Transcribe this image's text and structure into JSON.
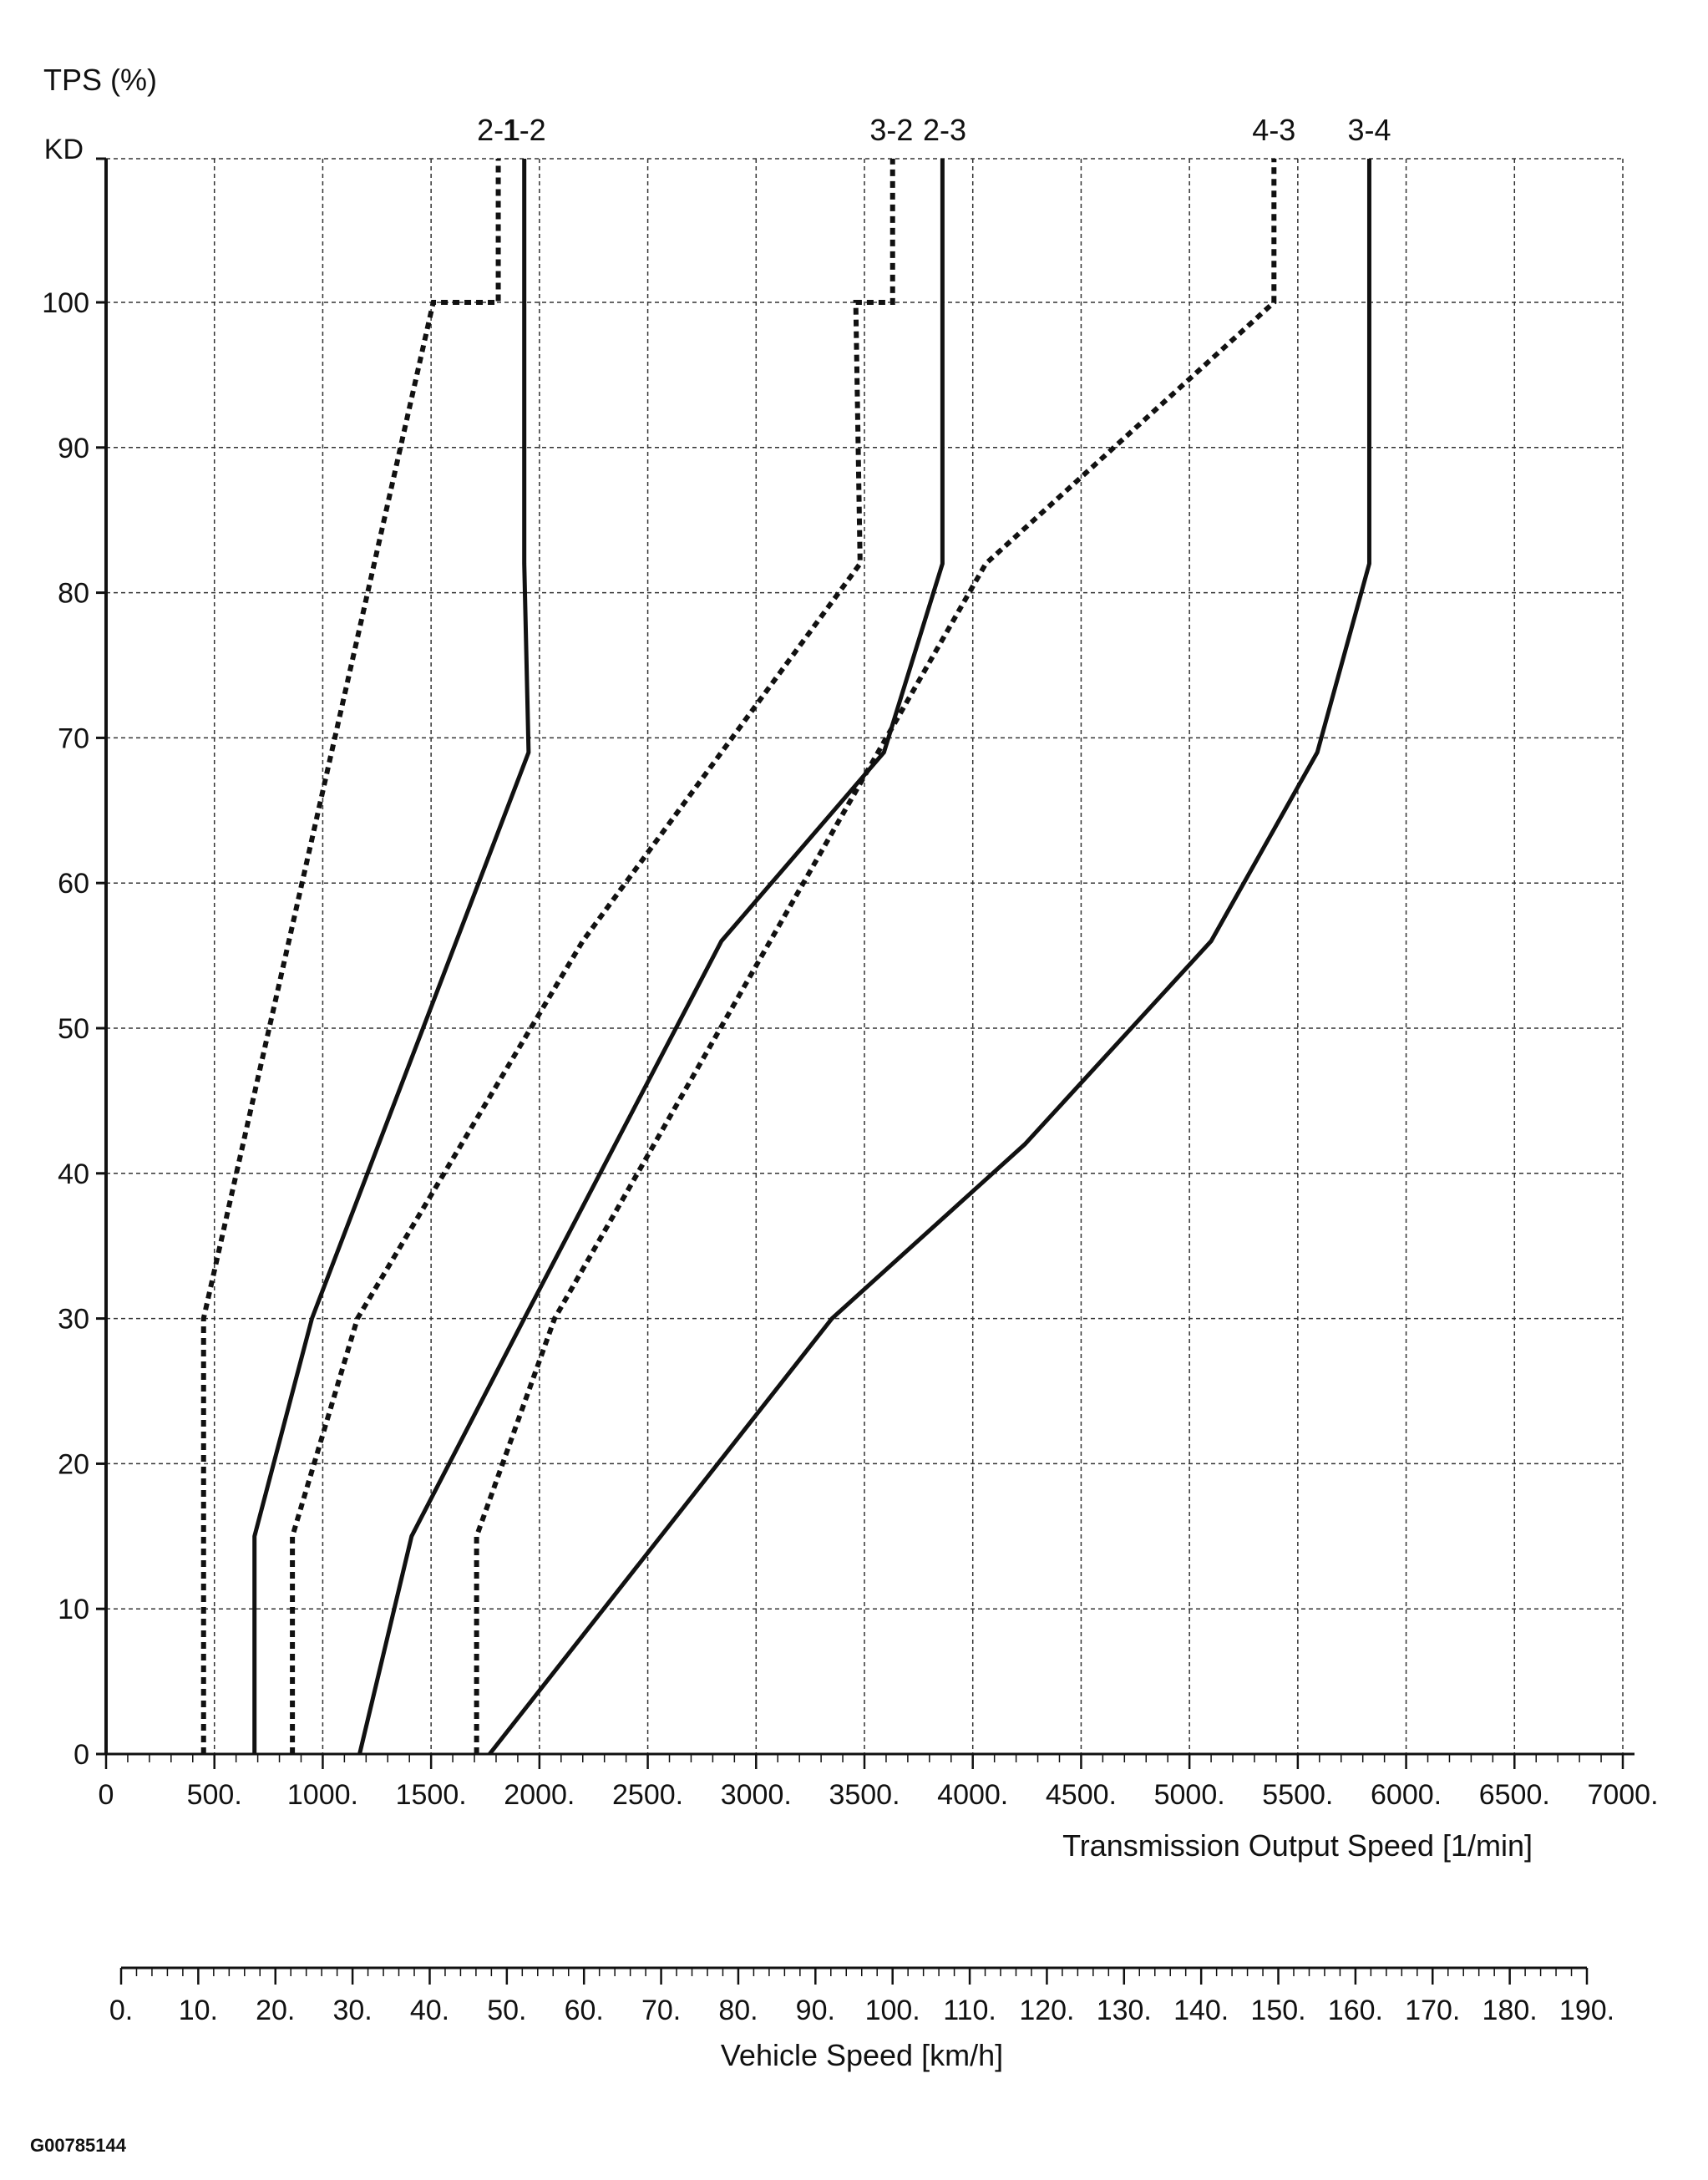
{
  "chart_data": {
    "type": "line",
    "ylabel": "TPS (%)",
    "xlabel": "Transmission Output Speed [1/min]",
    "x2label": "Vehicle Speed [km/h]",
    "xlim": [
      0,
      7000
    ],
    "ylim": [
      0,
      105
    ],
    "kd_label": "KD",
    "y_ticks": [
      0,
      10,
      20,
      30,
      40,
      50,
      60,
      70,
      80,
      90,
      100
    ],
    "y_tick_labels": [
      "0",
      "10",
      "20",
      "30",
      "40",
      "50",
      "60",
      "70",
      "80",
      "90",
      "100"
    ],
    "x_ticks": [
      0,
      500,
      1000,
      1500,
      2000,
      2500,
      3000,
      3500,
      4000,
      4500,
      5000,
      5500,
      6000,
      6500,
      7000
    ],
    "x_tick_labels": [
      "0",
      "500.",
      "1000.",
      "1500.",
      "2000.",
      "2500.",
      "3000.",
      "3500.",
      "4000.",
      "4500.",
      "5000.",
      "5500.",
      "6000.",
      "6500.",
      "7000."
    ],
    "x2_ticks": [
      0,
      10,
      20,
      30,
      40,
      50,
      60,
      70,
      80,
      90,
      100,
      110,
      120,
      130,
      140,
      150,
      160,
      170,
      180,
      190
    ],
    "x2_tick_labels": [
      "0.",
      "10.",
      "20.",
      "30.",
      "40.",
      "50.",
      "60.",
      "70.",
      "80.",
      "90.",
      "100.",
      "110.",
      "120.",
      "130.",
      "140.",
      "150.",
      "160.",
      "170.",
      "180.",
      "190."
    ],
    "grid": true,
    "series": [
      {
        "name": "2-1",
        "style": "dashed",
        "x": [
          450,
          450,
          1510,
          1810,
          1810
        ],
        "y": [
          0,
          30,
          100,
          100,
          105
        ]
      },
      {
        "name": "1-2",
        "style": "solid",
        "x": [
          685,
          685,
          950,
          1950,
          1930,
          1930
        ],
        "y": [
          0,
          15,
          30,
          69,
          82,
          105
        ]
      },
      {
        "name": "3-2",
        "style": "dashed",
        "x": [
          860,
          860,
          1160,
          2200,
          3480,
          3460,
          3630,
          3630
        ],
        "y": [
          0,
          15,
          30,
          56,
          82,
          100,
          100,
          105
        ]
      },
      {
        "name": "2-3",
        "style": "solid",
        "x": [
          1170,
          1170,
          1410,
          1930,
          2840,
          3590,
          3860,
          3860
        ],
        "y": [
          0,
          0,
          15,
          30,
          56,
          69,
          82,
          105
        ]
      },
      {
        "name": "4-3",
        "style": "dashed",
        "x": [
          1710,
          1710,
          2070,
          4060,
          5390,
          5390
        ],
        "y": [
          0,
          15,
          30,
          82,
          100,
          105
        ]
      },
      {
        "name": "3-4",
        "style": "solid",
        "x": [
          1770,
          3350,
          4240,
          5100,
          5590,
          5830,
          5830
        ],
        "y": [
          0,
          30,
          42,
          56,
          69,
          82,
          105
        ]
      }
    ]
  },
  "figure_id": "G00785144"
}
